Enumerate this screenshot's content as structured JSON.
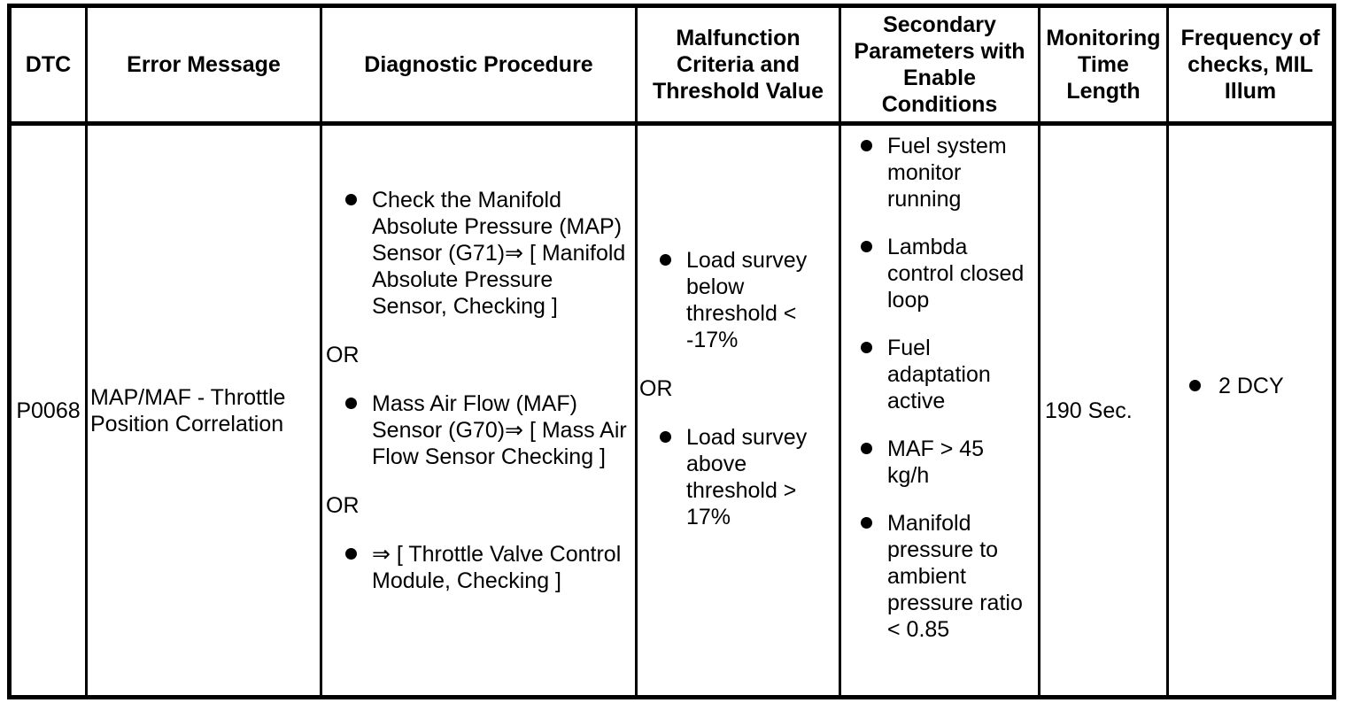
{
  "table": {
    "columns": [
      {
        "label": "DTC"
      },
      {
        "label": "Error Message"
      },
      {
        "label": "Diagnostic Procedure"
      },
      {
        "label": "Malfunction Criteria and Threshold Value"
      },
      {
        "label": "Secondary Parameters with Enable Conditions"
      },
      {
        "label": "Monitoring Time Length"
      },
      {
        "label": "Frequency of checks, MIL Illum"
      }
    ],
    "row": {
      "dtc": "P0068",
      "error_message": "MAP/MAF - Throttle Position Correlation",
      "diagnostic_procedure": [
        {
          "kind": "bullet",
          "text": "Check the Manifold Absolute Pressure (MAP) Sensor (G71)⇒ [ Manifold Absolute Pressure Sensor, Checking ]"
        },
        {
          "kind": "connector",
          "text": "OR"
        },
        {
          "kind": "bullet",
          "text": "Mass Air Flow (MAF) Sensor (G70)⇒ [ Mass Air Flow Sensor Checking ]"
        },
        {
          "kind": "connector",
          "text": "OR"
        },
        {
          "kind": "bullet",
          "text": "⇒ [ Throttle Valve Control Module, Checking ]"
        }
      ],
      "malfunction_criteria": [
        {
          "kind": "bullet",
          "text": "Load survey below threshold < -17%"
        },
        {
          "kind": "connector",
          "text": "OR"
        },
        {
          "kind": "bullet",
          "text": "Load survey above threshold > 17%"
        }
      ],
      "secondary_parameters": [
        "Fuel system monitor running",
        "Lambda control closed loop",
        "Fuel adaptation active",
        "MAF > 45 kg/h",
        "Manifold pressure to ambient pressure ratio < 0.85"
      ],
      "monitoring_time_length": "190 Sec.",
      "frequency_of_checks": "2 DCY"
    }
  }
}
